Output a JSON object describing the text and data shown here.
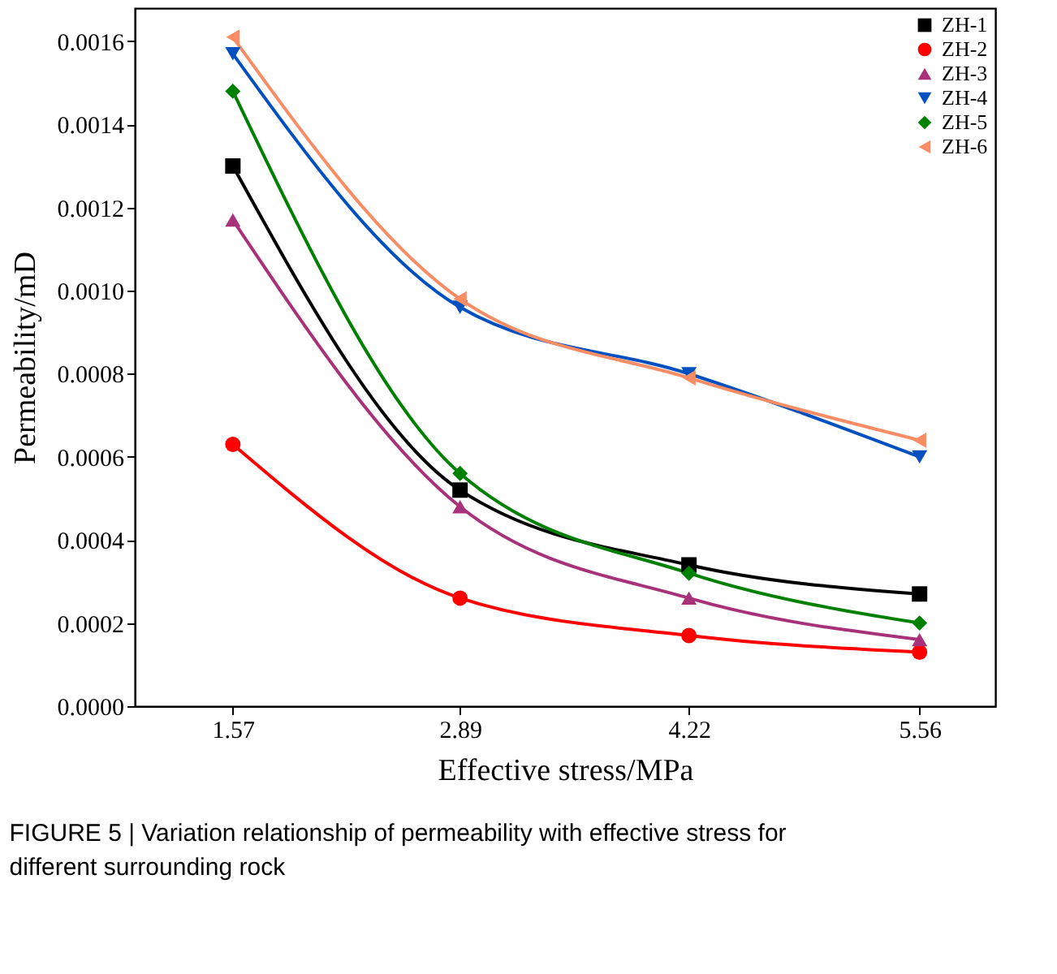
{
  "chart_data": {
    "type": "line",
    "xlabel": "Effective stress/MPa",
    "ylabel": "Permeability/mD",
    "x": [
      1.57,
      2.89,
      4.22,
      5.56
    ],
    "xlim": [
      1.0,
      6.0
    ],
    "xticks": [
      1.57,
      2.89,
      4.22,
      5.56
    ],
    "ylim": [
      0,
      0.00168
    ],
    "yticks": [
      {
        "value": 0,
        "label": "0.0000"
      },
      {
        "value": 0.0002,
        "label": "0.0002"
      },
      {
        "value": 0.0004,
        "label": "0.0004"
      },
      {
        "value": 0.0006,
        "label": "0.0006"
      },
      {
        "value": 0.0008,
        "label": "0.0008"
      },
      {
        "value": 0.001,
        "label": "0.0010"
      },
      {
        "value": 0.0012,
        "label": "0.0012"
      },
      {
        "value": 0.0014,
        "label": "0.0014"
      },
      {
        "value": 0.0016,
        "label": "0.0016"
      }
    ],
    "grid": false,
    "legend": "top right",
    "line_style": "solid",
    "series": [
      {
        "name": "ZH-1",
        "color": "#000000",
        "marker": "square",
        "values": [
          0.0013,
          0.00052,
          0.00034,
          0.00027
        ]
      },
      {
        "name": "ZH-2",
        "color": "#ff0000",
        "marker": "circle",
        "values": [
          0.00063,
          0.00026,
          0.00017,
          0.00013
        ]
      },
      {
        "name": "ZH-3",
        "color": "#a8327a",
        "marker": "triangle-up",
        "values": [
          0.00117,
          0.00048,
          0.00026,
          0.00016
        ]
      },
      {
        "name": "ZH-4",
        "color": "#0050c0",
        "marker": "triangle-down",
        "values": [
          0.00157,
          0.00096,
          0.0008,
          0.0006
        ]
      },
      {
        "name": "ZH-5",
        "color": "#008000",
        "marker": "diamond",
        "values": [
          0.00148,
          0.00056,
          0.00032,
          0.0002
        ]
      },
      {
        "name": "ZH-6",
        "color": "#f88c64",
        "marker": "triangle-left",
        "values": [
          0.00161,
          0.00098,
          0.00079,
          0.00064
        ]
      }
    ],
    "annotations": [
      "FIGURE 5 | Variation relationship of permeability with effective stress for different surrounding rock"
    ]
  }
}
